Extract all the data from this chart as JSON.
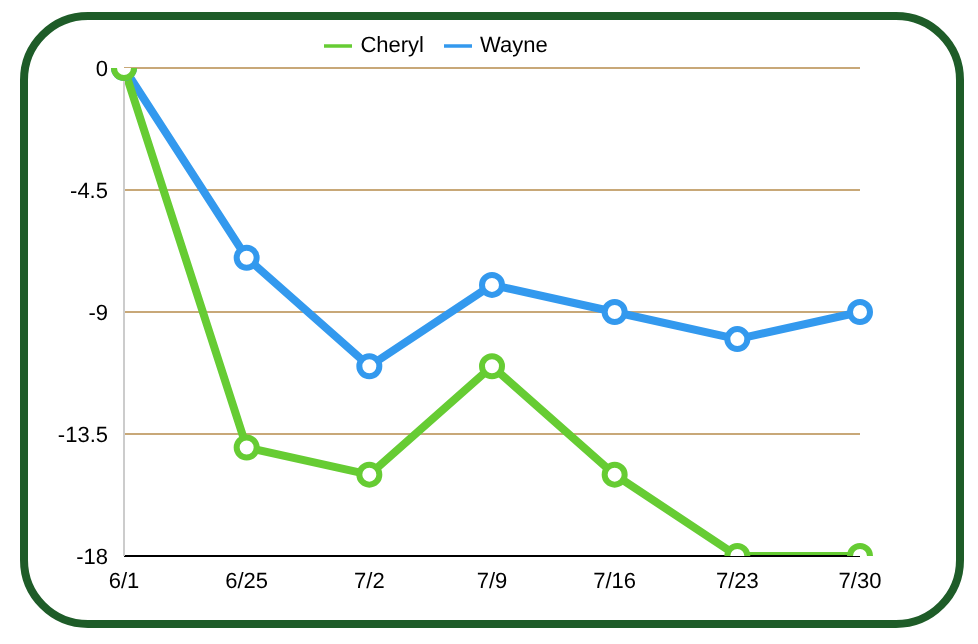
{
  "chart_data": {
    "type": "line",
    "categories": [
      "6/1",
      "6/25",
      "7/2",
      "7/9",
      "7/16",
      "7/23",
      "7/30"
    ],
    "series": [
      {
        "name": "Wayne",
        "color": "#3399ee",
        "values": [
          0,
          -7,
          -11,
          -8,
          -9,
          -10,
          -9
        ]
      },
      {
        "name": "Cheryl",
        "color": "#66cc33",
        "values": [
          0,
          -14,
          -15,
          -11,
          -15,
          -18,
          -18
        ]
      }
    ],
    "ylim": [
      -18,
      0
    ],
    "yticks": [
      0,
      -4.5,
      -9,
      -13.5,
      -18
    ],
    "grid": "y",
    "legend": "top",
    "marker": "circle",
    "line_style": "solid"
  }
}
